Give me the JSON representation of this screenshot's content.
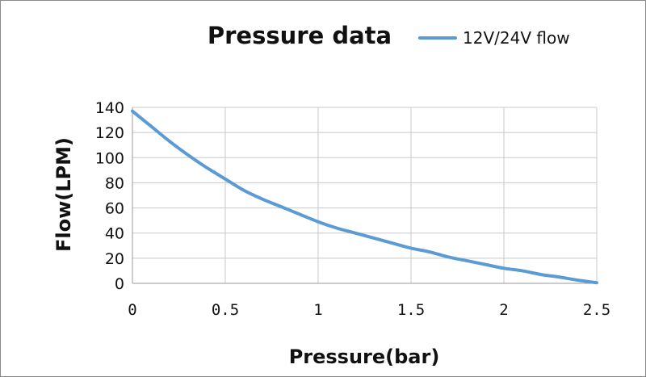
{
  "chart_data": {
    "type": "line",
    "title": "Pressure data",
    "xlabel": "Pressure(bar)",
    "ylabel": "Flow(LPM)",
    "xlim": [
      0,
      2.5
    ],
    "ylim": [
      0,
      140
    ],
    "x_ticks": [
      "0",
      "0.5",
      "1",
      "1.5",
      "2",
      "2.5"
    ],
    "y_ticks": [
      "140",
      "120",
      "100",
      "80",
      "60",
      "40",
      "20",
      "0"
    ],
    "grid": true,
    "legend_position": "top-right",
    "series": [
      {
        "name": "12V/24V flow",
        "color": "#5b9bd5",
        "x": [
          0,
          0.1,
          0.2,
          0.3,
          0.4,
          0.5,
          0.6,
          0.7,
          0.8,
          0.9,
          1.0,
          1.1,
          1.2,
          1.3,
          1.4,
          1.5,
          1.6,
          1.7,
          1.8,
          1.9,
          2.0,
          2.1,
          2.2,
          2.3,
          2.4,
          2.5
        ],
        "y": [
          137,
          125,
          113,
          102,
          92,
          83,
          74,
          67,
          61,
          55,
          49,
          44,
          40,
          36,
          32,
          28,
          25,
          21,
          18,
          15,
          12,
          10,
          7,
          5,
          2.5,
          0.5
        ]
      }
    ]
  }
}
